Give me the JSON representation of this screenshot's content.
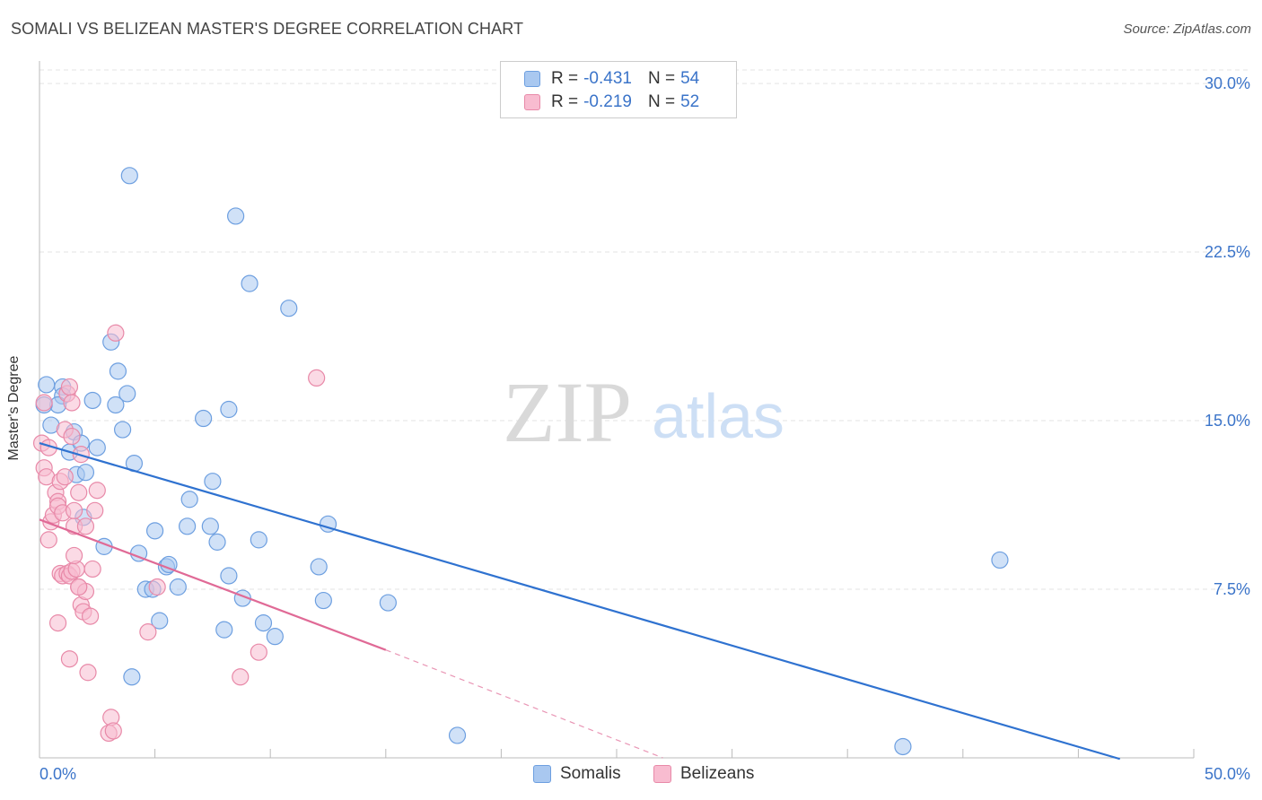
{
  "title": "SOMALI VS BELIZEAN MASTER'S DEGREE CORRELATION CHART",
  "source": "Source: ZipAtlas.com",
  "watermark": {
    "zip": "ZIP",
    "atlas": "atlas"
  },
  "legend": {
    "rows": [
      {
        "r_label": "R =",
        "r_value": "-0.431",
        "n_label": "N =",
        "n_value": "54",
        "color": "#a9c8f0",
        "border": "#6d9fe0"
      },
      {
        "r_label": "R =",
        "r_value": "-0.219",
        "n_label": "N =",
        "n_value": "52",
        "color": "#f8bcd0",
        "border": "#e889a8"
      }
    ]
  },
  "bottom_legend": [
    {
      "label": "Somalis",
      "color": "#a9c8f0",
      "border": "#6d9fe0"
    },
    {
      "label": "Belizeans",
      "color": "#f8bcd0",
      "border": "#e889a8"
    }
  ],
  "chart_data": {
    "type": "scatter",
    "ylabel": "Master's Degree",
    "xlim": [
      0,
      50
    ],
    "ylim": [
      0,
      31
    ],
    "x_tick_labels": [
      "0.0%",
      "50.0%"
    ],
    "y_ticks": [
      7.5,
      15.0,
      22.5,
      30.0
    ],
    "y_tick_labels": [
      "7.5%",
      "15.0%",
      "22.5%",
      "30.0%"
    ],
    "grid": true,
    "series": [
      {
        "name": "Somalis",
        "color": "#6d9fe0",
        "fill": "#a9c8f0",
        "line_color": "#2f72d0",
        "trend": {
          "x0": 0,
          "y0": 14.0,
          "x1": 46.8,
          "y1": -0.05
        },
        "points": [
          [
            0.3,
            16.6
          ],
          [
            0.5,
            14.8
          ],
          [
            1.0,
            16.5
          ],
          [
            1.0,
            16.1
          ],
          [
            0.8,
            15.7
          ],
          [
            1.5,
            14.5
          ],
          [
            1.3,
            13.6
          ],
          [
            1.6,
            12.6
          ],
          [
            1.8,
            14.0
          ],
          [
            2.0,
            12.7
          ],
          [
            2.3,
            15.9
          ],
          [
            2.5,
            13.8
          ],
          [
            1.9,
            10.7
          ],
          [
            2.8,
            9.4
          ],
          [
            3.1,
            18.5
          ],
          [
            3.3,
            15.7
          ],
          [
            3.4,
            17.2
          ],
          [
            3.6,
            14.6
          ],
          [
            3.8,
            16.2
          ],
          [
            4.1,
            13.1
          ],
          [
            3.9,
            25.9
          ],
          [
            4.3,
            9.1
          ],
          [
            4.6,
            7.5
          ],
          [
            4.9,
            7.5
          ],
          [
            5.0,
            10.1
          ],
          [
            5.2,
            6.1
          ],
          [
            5.5,
            8.5
          ],
          [
            5.6,
            8.6
          ],
          [
            6.0,
            7.6
          ],
          [
            6.4,
            10.3
          ],
          [
            7.1,
            15.1
          ],
          [
            7.4,
            10.3
          ],
          [
            7.5,
            12.3
          ],
          [
            7.7,
            9.6
          ],
          [
            8.0,
            5.7
          ],
          [
            8.2,
            8.1
          ],
          [
            8.2,
            15.5
          ],
          [
            8.5,
            24.1
          ],
          [
            8.8,
            7.1
          ],
          [
            9.1,
            21.1
          ],
          [
            9.5,
            9.7
          ],
          [
            9.7,
            6.0
          ],
          [
            10.2,
            5.4
          ],
          [
            10.8,
            20.0
          ],
          [
            12.1,
            8.5
          ],
          [
            12.3,
            7.0
          ],
          [
            12.5,
            10.4
          ],
          [
            15.1,
            6.9
          ],
          [
            18.1,
            1.0
          ],
          [
            37.4,
            0.5
          ],
          [
            41.6,
            8.8
          ],
          [
            6.5,
            11.5
          ],
          [
            4.0,
            3.6
          ],
          [
            0.2,
            15.7
          ]
        ]
      },
      {
        "name": "Belizeans",
        "color": "#e889a8",
        "fill": "#f8bcd0",
        "line_color": "#e06a96",
        "trend": {
          "x0": 0,
          "y0": 10.6,
          "x1": 15.0,
          "y1": 4.8
        },
        "dash": {
          "x0": 15.0,
          "y0": 4.8,
          "x1": 27.0,
          "y1": 0.0
        },
        "points": [
          [
            0.1,
            14.0
          ],
          [
            0.2,
            15.8
          ],
          [
            0.2,
            12.9
          ],
          [
            0.3,
            12.5
          ],
          [
            0.4,
            13.8
          ],
          [
            0.4,
            9.7
          ],
          [
            0.5,
            10.5
          ],
          [
            0.6,
            10.8
          ],
          [
            0.7,
            11.8
          ],
          [
            0.8,
            11.4
          ],
          [
            0.8,
            11.2
          ],
          [
            0.9,
            12.3
          ],
          [
            1.0,
            10.9
          ],
          [
            1.1,
            14.6
          ],
          [
            1.2,
            16.2
          ],
          [
            1.3,
            16.5
          ],
          [
            1.4,
            14.3
          ],
          [
            1.5,
            10.3
          ],
          [
            1.5,
            11.0
          ],
          [
            1.7,
            11.8
          ],
          [
            1.8,
            13.5
          ],
          [
            1.4,
            15.8
          ],
          [
            0.9,
            8.2
          ],
          [
            1.0,
            8.1
          ],
          [
            1.2,
            8.2
          ],
          [
            1.3,
            8.1
          ],
          [
            1.4,
            8.3
          ],
          [
            1.6,
            8.4
          ],
          [
            1.5,
            9.0
          ],
          [
            1.7,
            7.6
          ],
          [
            1.8,
            6.8
          ],
          [
            1.9,
            6.5
          ],
          [
            2.0,
            7.4
          ],
          [
            2.2,
            6.3
          ],
          [
            2.3,
            8.4
          ],
          [
            2.4,
            11.0
          ],
          [
            2.5,
            11.9
          ],
          [
            0.8,
            6.0
          ],
          [
            1.3,
            4.4
          ],
          [
            2.1,
            3.8
          ],
          [
            3.1,
            1.8
          ],
          [
            3.0,
            1.1
          ],
          [
            3.2,
            1.2
          ],
          [
            3.3,
            18.9
          ],
          [
            4.7,
            5.6
          ],
          [
            5.1,
            7.6
          ],
          [
            8.7,
            3.6
          ],
          [
            9.5,
            4.7
          ],
          [
            12.0,
            16.9
          ],
          [
            1.7,
            7.6
          ],
          [
            1.1,
            12.5
          ],
          [
            2.0,
            10.3
          ]
        ]
      }
    ]
  }
}
